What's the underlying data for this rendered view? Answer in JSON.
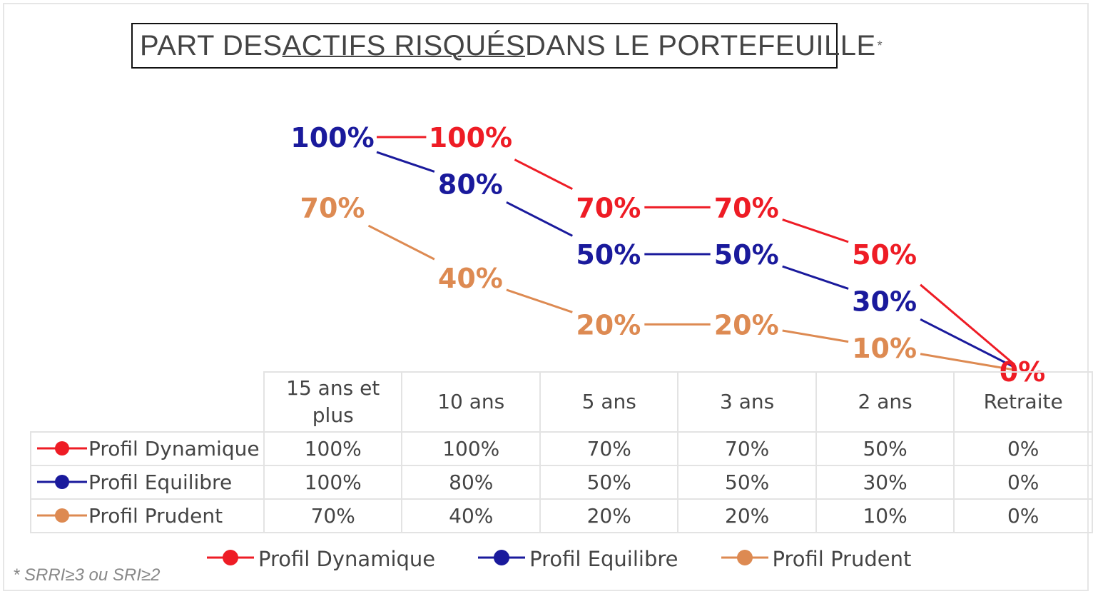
{
  "chart_data": {
    "type": "line",
    "title_parts": [
      "PART DES ",
      "ACTIFS RISQUÉS",
      " DANS LE PORTEFEUILLE"
    ],
    "title_mark": "*",
    "categories": [
      "15 ans et plus",
      "10 ans",
      "5 ans",
      "3 ans",
      "2 ans",
      "Retraite"
    ],
    "category_lines": [
      [
        "15 ans et",
        "plus"
      ],
      [
        "10 ans"
      ],
      [
        "5 ans"
      ],
      [
        "3 ans"
      ],
      [
        "2 ans"
      ],
      [
        "Retraite"
      ]
    ],
    "ylim": [
      0,
      100
    ],
    "grid": false,
    "legend_position": "bottom",
    "series": [
      {
        "name": "Profil Dynamique",
        "color": "#ee1c25",
        "values": [
          100,
          100,
          70,
          70,
          50,
          0
        ]
      },
      {
        "name": "Profil Equilibre",
        "color": "#1a1a9c",
        "values": [
          100,
          80,
          50,
          50,
          30,
          0
        ]
      },
      {
        "name": "Profil Prudent",
        "color": "#dd8a52",
        "values": [
          70,
          40,
          20,
          20,
          10,
          0
        ]
      }
    ],
    "value_labels": {
      "Profil Dynamique": [
        "",
        "100%",
        "70%",
        "70%",
        "50%",
        "0%"
      ],
      "Profil Equilibre": [
        "100%",
        "80%",
        "50%",
        "50%",
        "30%",
        ""
      ],
      "Profil Prudent": [
        "70%",
        "40%",
        "20%",
        "20%",
        "10%",
        ""
      ]
    },
    "table": {
      "rows": [
        {
          "label": "Profil Dynamique",
          "cells": [
            "100%",
            "100%",
            "70%",
            "70%",
            "50%",
            "0%"
          ]
        },
        {
          "label": "Profil Equilibre",
          "cells": [
            "100%",
            "80%",
            "50%",
            "50%",
            "30%",
            "0%"
          ]
        },
        {
          "label": "Profil Prudent",
          "cells": [
            "70%",
            "40%",
            "20%",
            "20%",
            "10%",
            "0%"
          ]
        }
      ]
    },
    "footnote": "* SRRI≥3 ou SRI≥2"
  }
}
